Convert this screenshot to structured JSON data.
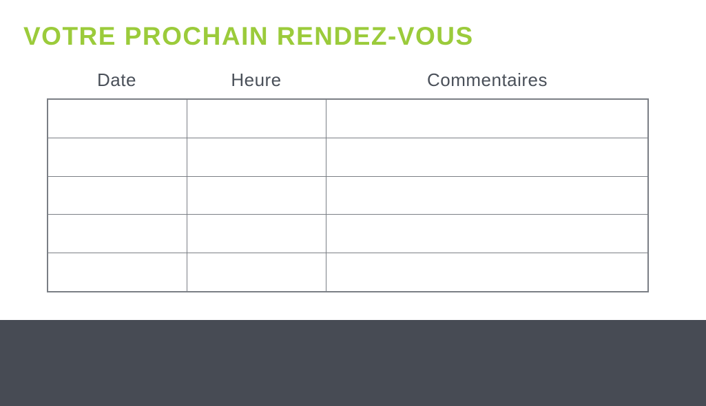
{
  "header": {
    "title": "VOTRE PROCHAIN RENDEZ-VOUS"
  },
  "table": {
    "columns": [
      {
        "label": "Date"
      },
      {
        "label": "Heure"
      },
      {
        "label": "Commentaires"
      }
    ],
    "row_count": 5,
    "rows": [
      {
        "date": "",
        "heure": "",
        "commentaires": ""
      },
      {
        "date": "",
        "heure": "",
        "commentaires": ""
      },
      {
        "date": "",
        "heure": "",
        "commentaires": ""
      },
      {
        "date": "",
        "heure": "",
        "commentaires": ""
      },
      {
        "date": "",
        "heure": "",
        "commentaires": ""
      }
    ]
  },
  "colors": {
    "title_green": "#9BCB3B",
    "header_text": "#4A5059",
    "table_border": "#7A7E84",
    "footer_background": "#474B54",
    "page_background": "#FFFFFF"
  }
}
